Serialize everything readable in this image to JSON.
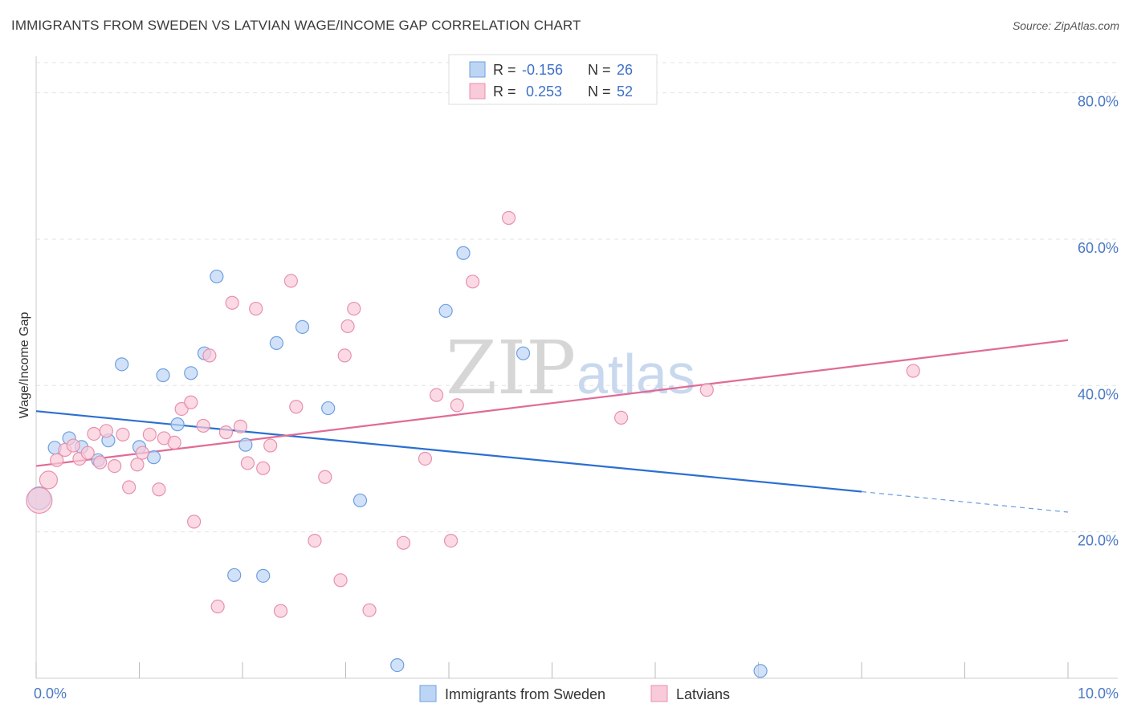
{
  "title": "IMMIGRANTS FROM SWEDEN VS LATVIAN WAGE/INCOME GAP CORRELATION CHART",
  "source": "Source: ZipAtlas.com",
  "watermark": {
    "zip": "ZIP",
    "atlas": "atlas"
  },
  "colors": {
    "blue_fill": "#bdd5f5",
    "blue_stroke": "#6f9fe0",
    "blue_line": "#2b6fd1",
    "pink_fill": "#f9cad8",
    "pink_stroke": "#e890ad",
    "pink_line": "#e06b96"
  },
  "legend_top": [
    {
      "r_label": "R =",
      "r_value": "-0.156",
      "n_label": "N =",
      "n_value": "26",
      "series": "blue"
    },
    {
      "r_label": "R =",
      "r_value": " 0.253",
      "n_label": "N =",
      "n_value": "52",
      "series": "pink"
    }
  ],
  "chart_data": {
    "type": "scatter",
    "title": "IMMIGRANTS FROM SWEDEN VS LATVIAN WAGE/INCOME GAP CORRELATION CHART",
    "xlabel": "",
    "ylabel": "Wage/Income Gap",
    "xlim": [
      0,
      10
    ],
    "ylim": [
      0,
      85
    ],
    "x_tick_labels": [
      {
        "value": 0,
        "label": "0.0%"
      },
      {
        "value": 10,
        "label": "10.0%"
      }
    ],
    "y_tick_labels": [
      {
        "value": 20,
        "label": "20.0%"
      },
      {
        "value": 40,
        "label": "40.0%"
      },
      {
        "value": 60,
        "label": "60.0%"
      },
      {
        "value": 80,
        "label": "80.0%"
      }
    ],
    "grid": true,
    "legend_placement": "bottom-center",
    "series": [
      {
        "name": "Immigrants from Sweden",
        "color": "#bdd5f5",
        "points": [
          {
            "x": 0.03,
            "y": 24.6,
            "r": 14
          },
          {
            "x": 0.18,
            "y": 31.5
          },
          {
            "x": 0.32,
            "y": 32.8
          },
          {
            "x": 0.44,
            "y": 31.6
          },
          {
            "x": 0.6,
            "y": 29.8
          },
          {
            "x": 0.7,
            "y": 32.5
          },
          {
            "x": 0.83,
            "y": 42.9
          },
          {
            "x": 1.0,
            "y": 31.6
          },
          {
            "x": 1.14,
            "y": 30.2
          },
          {
            "x": 1.23,
            "y": 41.4
          },
          {
            "x": 1.37,
            "y": 34.7
          },
          {
            "x": 1.5,
            "y": 41.7
          },
          {
            "x": 1.63,
            "y": 44.4
          },
          {
            "x": 1.75,
            "y": 54.9
          },
          {
            "x": 1.92,
            "y": 14.1
          },
          {
            "x": 2.03,
            "y": 31.9
          },
          {
            "x": 2.2,
            "y": 14.0
          },
          {
            "x": 2.33,
            "y": 45.8
          },
          {
            "x": 2.58,
            "y": 48.0
          },
          {
            "x": 2.83,
            "y": 36.9
          },
          {
            "x": 3.14,
            "y": 24.3
          },
          {
            "x": 3.5,
            "y": 1.8
          },
          {
            "x": 3.97,
            "y": 50.2
          },
          {
            "x": 4.14,
            "y": 58.1
          },
          {
            "x": 4.72,
            "y": 44.4
          },
          {
            "x": 7.02,
            "y": 1.0
          }
        ],
        "trend": {
          "x1": 0,
          "y1": 36.5,
          "x2": 8.0,
          "y2": 25.5,
          "dash_to_x": 10.0,
          "dash_to_y": 22.7
        }
      },
      {
        "name": "Latvians",
        "color": "#f9cad8",
        "points": [
          {
            "x": 0.03,
            "y": 24.3,
            "r": 16
          },
          {
            "x": 0.12,
            "y": 27.1,
            "r": 11
          },
          {
            "x": 0.2,
            "y": 29.8
          },
          {
            "x": 0.28,
            "y": 31.2
          },
          {
            "x": 0.36,
            "y": 31.8
          },
          {
            "x": 0.42,
            "y": 30.0
          },
          {
            "x": 0.5,
            "y": 30.8
          },
          {
            "x": 0.56,
            "y": 33.4
          },
          {
            "x": 0.62,
            "y": 29.5
          },
          {
            "x": 0.68,
            "y": 33.8
          },
          {
            "x": 0.76,
            "y": 29.0
          },
          {
            "x": 0.84,
            "y": 33.3
          },
          {
            "x": 0.9,
            "y": 26.1
          },
          {
            "x": 0.98,
            "y": 29.2
          },
          {
            "x": 1.03,
            "y": 30.8
          },
          {
            "x": 1.1,
            "y": 33.3
          },
          {
            "x": 1.19,
            "y": 25.8
          },
          {
            "x": 1.24,
            "y": 32.8
          },
          {
            "x": 1.34,
            "y": 32.2
          },
          {
            "x": 1.41,
            "y": 36.8
          },
          {
            "x": 1.5,
            "y": 37.7
          },
          {
            "x": 1.53,
            "y": 21.4
          },
          {
            "x": 1.62,
            "y": 34.5
          },
          {
            "x": 1.68,
            "y": 44.1
          },
          {
            "x": 1.76,
            "y": 9.8
          },
          {
            "x": 1.84,
            "y": 33.6
          },
          {
            "x": 1.9,
            "y": 51.3
          },
          {
            "x": 1.98,
            "y": 34.4
          },
          {
            "x": 2.05,
            "y": 29.4
          },
          {
            "x": 2.13,
            "y": 50.5
          },
          {
            "x": 2.2,
            "y": 28.7
          },
          {
            "x": 2.27,
            "y": 31.8
          },
          {
            "x": 2.37,
            "y": 9.2
          },
          {
            "x": 2.47,
            "y": 54.3
          },
          {
            "x": 2.52,
            "y": 37.1
          },
          {
            "x": 2.7,
            "y": 18.8
          },
          {
            "x": 2.8,
            "y": 27.5
          },
          {
            "x": 2.95,
            "y": 13.4
          },
          {
            "x": 2.99,
            "y": 44.1
          },
          {
            "x": 3.02,
            "y": 48.1
          },
          {
            "x": 3.08,
            "y": 50.5
          },
          {
            "x": 3.23,
            "y": 9.3
          },
          {
            "x": 3.56,
            "y": 18.5
          },
          {
            "x": 3.77,
            "y": 30.0
          },
          {
            "x": 3.88,
            "y": 38.7
          },
          {
            "x": 4.02,
            "y": 18.8
          },
          {
            "x": 4.08,
            "y": 37.3
          },
          {
            "x": 4.23,
            "y": 54.2
          },
          {
            "x": 4.58,
            "y": 62.9
          },
          {
            "x": 5.67,
            "y": 35.6
          },
          {
            "x": 6.5,
            "y": 39.4
          },
          {
            "x": 8.5,
            "y": 42.0
          }
        ],
        "trend": {
          "x1": 0,
          "y1": 29.0,
          "x2": 10.0,
          "y2": 46.2
        }
      }
    ]
  }
}
